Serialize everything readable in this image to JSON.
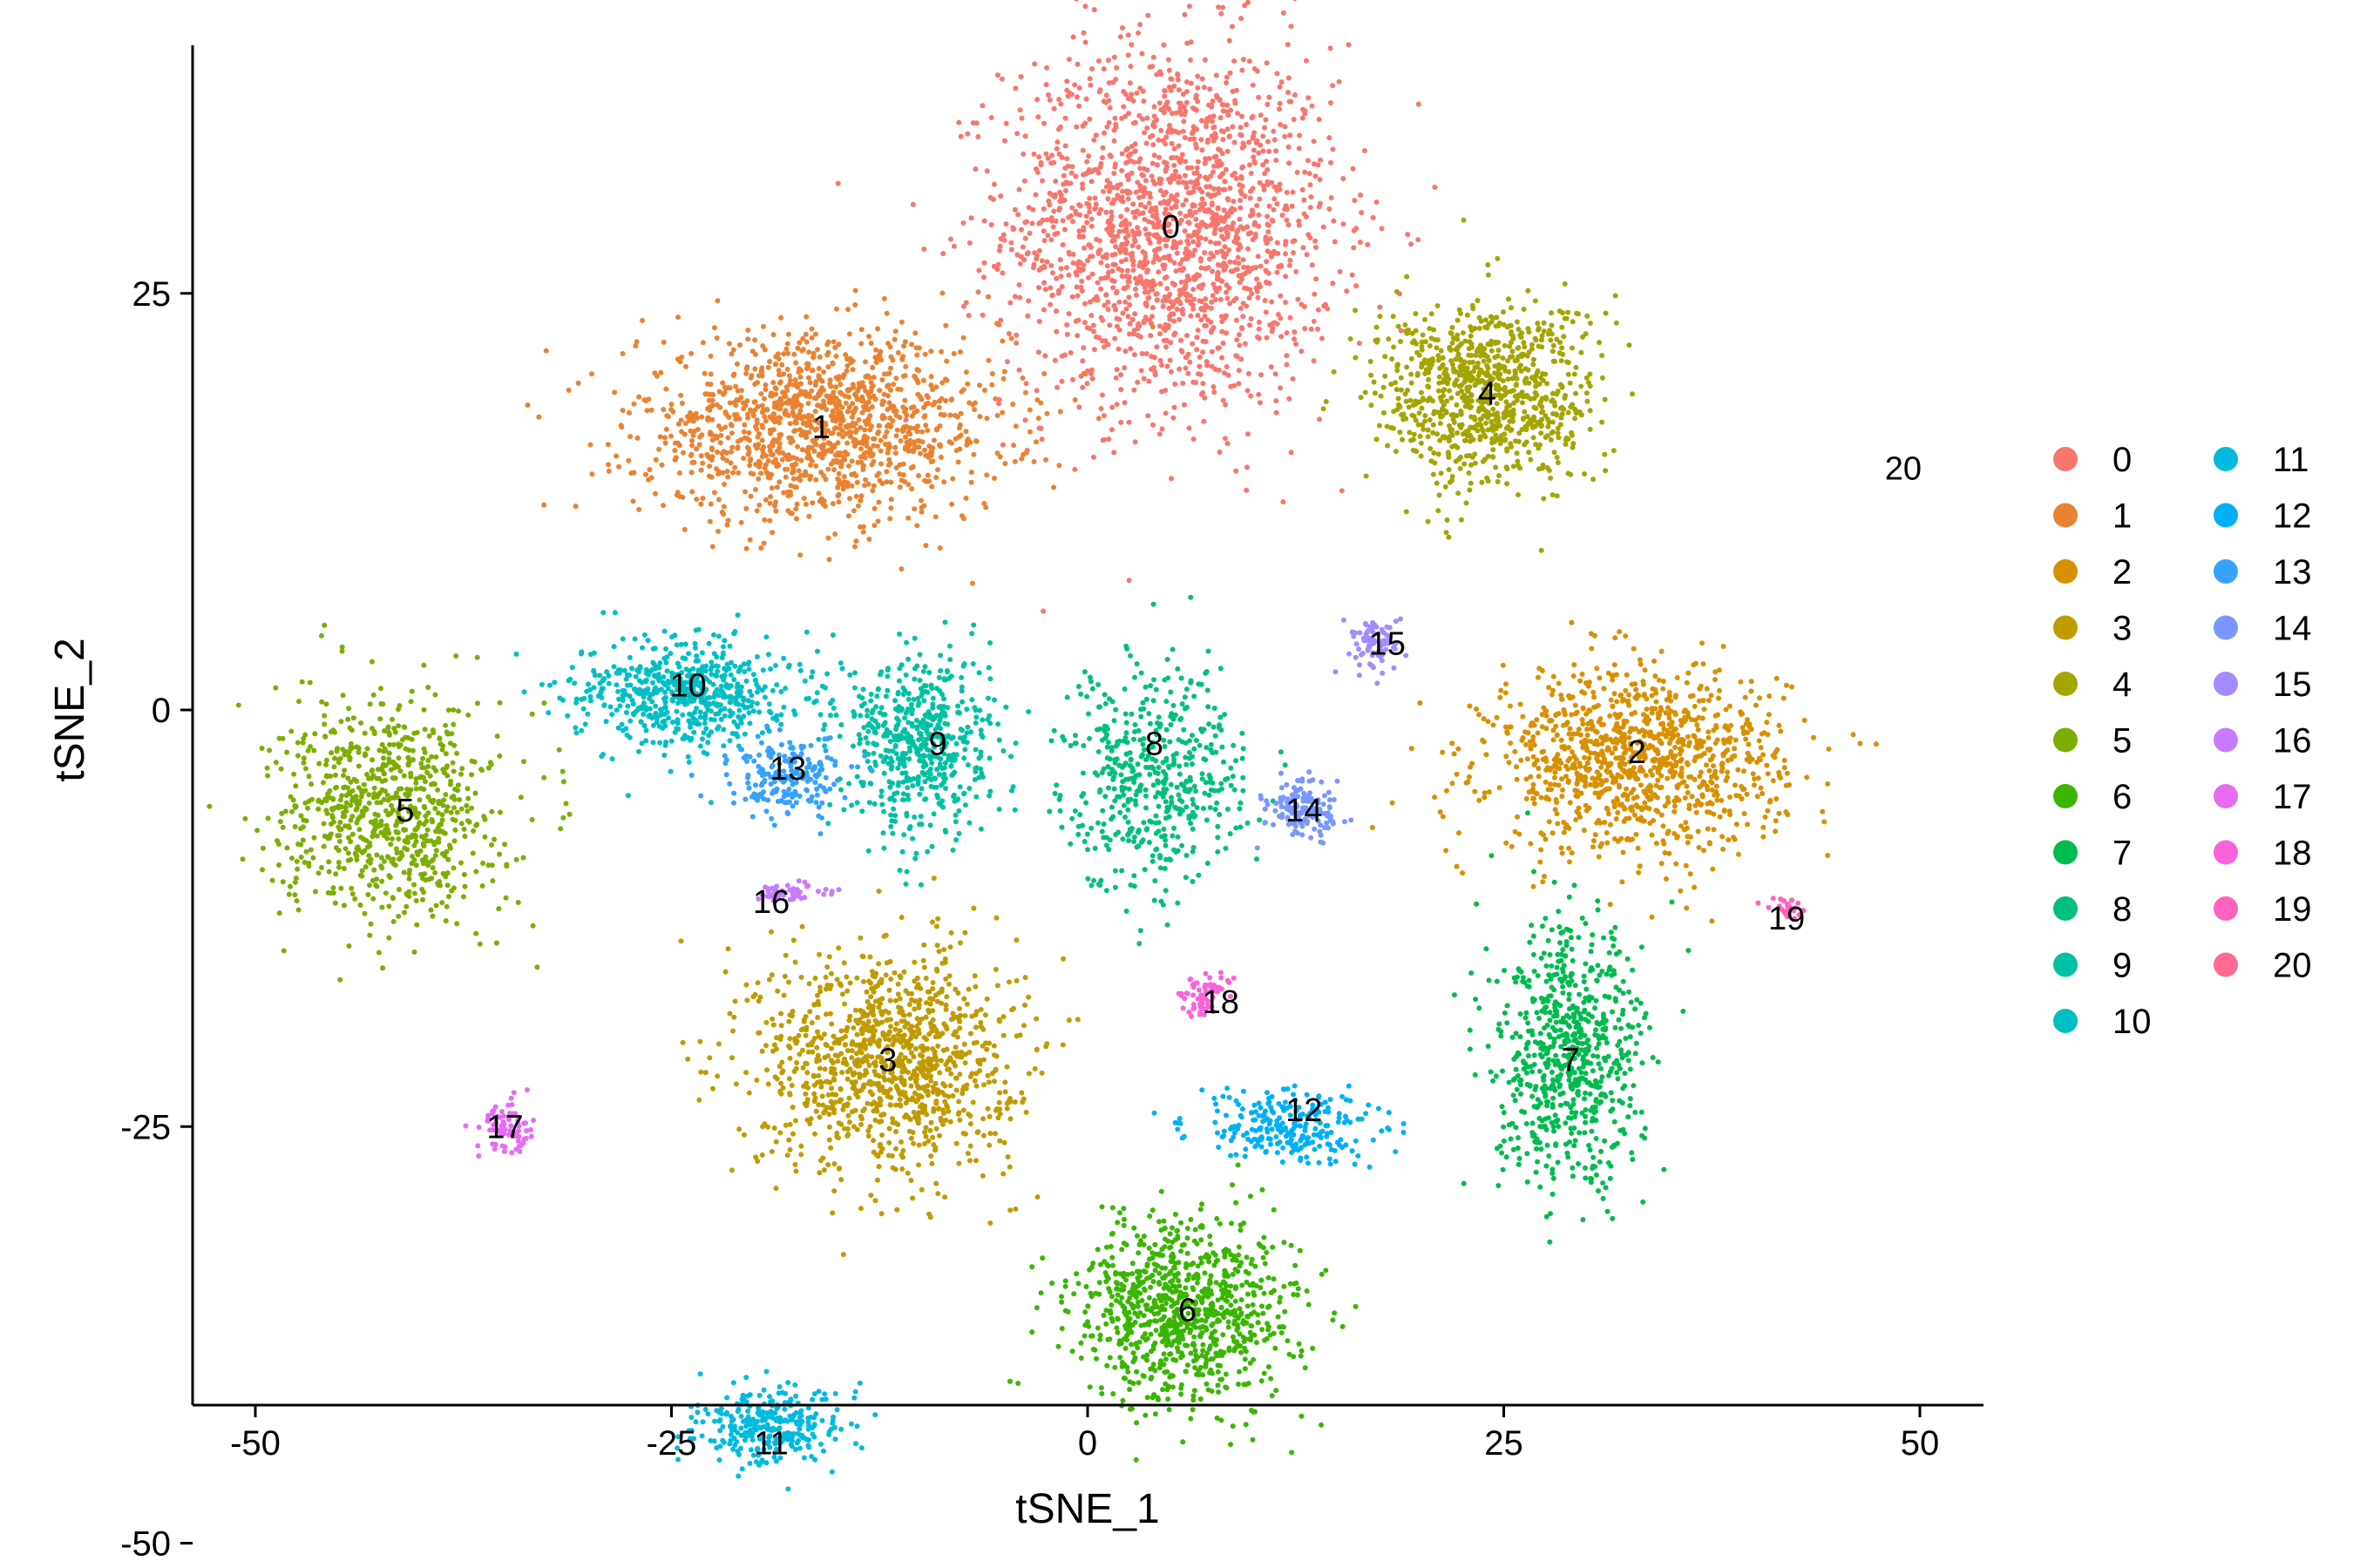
{
  "chart_data": {
    "type": "scatter",
    "xlabel": "tSNE_1",
    "ylabel": "tSNE_2",
    "xlim": [
      -54,
      54
    ],
    "ylim": [
      -52,
      50
    ],
    "xticks": [
      -50,
      -25,
      0,
      25,
      50
    ],
    "yticks": [
      -50,
      -25,
      0,
      25
    ],
    "xtick_labels": [
      "-50",
      "-25",
      "0",
      "25",
      "50"
    ],
    "ytick_labels": [
      "-50",
      "-25",
      "0",
      "25"
    ],
    "grid": false,
    "legend_position": "right",
    "legend_columns": 2,
    "clusters": [
      {
        "name": "0",
        "color": "#F8766D",
        "center": [
          5,
          29
        ],
        "spread": [
          9,
          10
        ],
        "n": 1800
      },
      {
        "name": "1",
        "color": "#EA8331",
        "center": [
          -16,
          17
        ],
        "spread": [
          10,
          5
        ],
        "n": 1300
      },
      {
        "name": "2",
        "color": "#D89000",
        "center": [
          33,
          -3
        ],
        "spread": [
          8,
          5
        ],
        "n": 1100
      },
      {
        "name": "3",
        "color": "#C09B00",
        "center": [
          -12,
          -21
        ],
        "spread": [
          7,
          6
        ],
        "n": 1100
      },
      {
        "name": "4",
        "color": "#A3A500",
        "center": [
          24,
          19
        ],
        "spread": [
          6,
          5
        ],
        "n": 900
      },
      {
        "name": "5",
        "color": "#7CAE00",
        "center": [
          -42,
          -6
        ],
        "spread": [
          6,
          6
        ],
        "n": 800
      },
      {
        "name": "6",
        "color": "#39B600",
        "center": [
          6,
          -36
        ],
        "spread": [
          6,
          5
        ],
        "n": 900
      },
      {
        "name": "7",
        "color": "#00BB4E",
        "center": [
          29,
          -21
        ],
        "spread": [
          4,
          7
        ],
        "n": 700
      },
      {
        "name": "8",
        "color": "#00BF7D",
        "center": [
          4,
          -4
        ],
        "spread": [
          5,
          6
        ],
        "n": 500
      },
      {
        "name": "9",
        "color": "#00C1A3",
        "center": [
          -10,
          -2
        ],
        "spread": [
          4,
          5
        ],
        "n": 550
      },
      {
        "name": "10",
        "color": "#00BFC4",
        "center": [
          -24,
          1
        ],
        "spread": [
          6,
          3
        ],
        "n": 600
      },
      {
        "name": "11",
        "color": "#00BAE0",
        "center": [
          -19,
          -43
        ],
        "spread": [
          4,
          2
        ],
        "n": 300
      },
      {
        "name": "12",
        "color": "#00B0F6",
        "center": [
          12,
          -25
        ],
        "spread": [
          5,
          2
        ],
        "n": 250
      },
      {
        "name": "13",
        "color": "#35A2FF",
        "center": [
          -18,
          -4
        ],
        "spread": [
          3,
          2
        ],
        "n": 200
      },
      {
        "name": "14",
        "color": "#7997FF",
        "center": [
          13,
          -6
        ],
        "spread": [
          2,
          1.5
        ],
        "n": 150
      },
      {
        "name": "15",
        "color": "#A58AFF",
        "center": [
          17,
          4
        ],
        "spread": [
          1.5,
          1.5
        ],
        "n": 80
      },
      {
        "name": "16",
        "color": "#C77CFF",
        "center": [
          -18,
          -11
        ],
        "spread": [
          2,
          0.5
        ],
        "n": 60
      },
      {
        "name": "17",
        "color": "#E76BF3",
        "center": [
          -35,
          -25
        ],
        "spread": [
          1.5,
          1.5
        ],
        "n": 80
      },
      {
        "name": "18",
        "color": "#FA62DB",
        "center": [
          7,
          -17
        ],
        "spread": [
          1.2,
          1.2
        ],
        "n": 70
      },
      {
        "name": "19",
        "color": "#FF62BC",
        "center": [
          42,
          -12
        ],
        "spread": [
          1.2,
          0.6
        ],
        "n": 30
      },
      {
        "name": "20",
        "color": "#FF6C90",
        "center": [
          49,
          14
        ],
        "spread": [
          0,
          0
        ],
        "n": 0
      }
    ],
    "cluster_label_positions": [
      {
        "name": "0",
        "x": 5,
        "y": 29
      },
      {
        "name": "1",
        "x": -16,
        "y": 17
      },
      {
        "name": "2",
        "x": 33,
        "y": -2.5
      },
      {
        "name": "3",
        "x": -12,
        "y": -21
      },
      {
        "name": "4",
        "x": 24,
        "y": 19
      },
      {
        "name": "5",
        "x": -41,
        "y": -6
      },
      {
        "name": "6",
        "x": 6,
        "y": -36
      },
      {
        "name": "7",
        "x": 29,
        "y": -21
      },
      {
        "name": "8",
        "x": 4,
        "y": -2
      },
      {
        "name": "9",
        "x": -9,
        "y": -2
      },
      {
        "name": "10",
        "x": -24,
        "y": 1.5
      },
      {
        "name": "11",
        "x": -19,
        "y": -44
      },
      {
        "name": "12",
        "x": 13,
        "y": -24
      },
      {
        "name": "13",
        "x": -18,
        "y": -3.5
      },
      {
        "name": "14",
        "x": 13,
        "y": -6
      },
      {
        "name": "15",
        "x": 18,
        "y": 4
      },
      {
        "name": "16",
        "x": -19,
        "y": -11.5
      },
      {
        "name": "17",
        "x": -35,
        "y": -25
      },
      {
        "name": "18",
        "x": 8,
        "y": -17.5
      },
      {
        "name": "19",
        "x": 42,
        "y": -12.5
      },
      {
        "name": "20",
        "x": 49,
        "y": 14.5
      }
    ]
  }
}
